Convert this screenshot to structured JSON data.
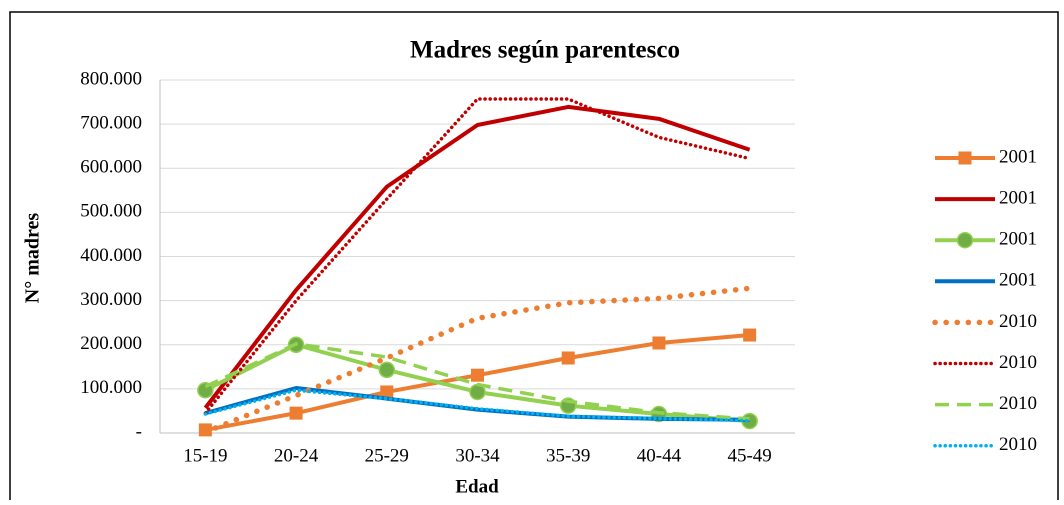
{
  "chart_data": {
    "type": "line",
    "title": "Madres según parentesco",
    "x_label": "Edad",
    "y_label": "N° madres",
    "categories": [
      "15-19",
      "20-24",
      "25-29",
      "30-34",
      "35-39",
      "40-44",
      "45-49"
    ],
    "ylim": [
      0,
      800000
    ],
    "yticks": [
      {
        "value": 0,
        "label": "-"
      },
      {
        "value": 100000,
        "label": "100.000"
      },
      {
        "value": 200000,
        "label": "200.000"
      },
      {
        "value": 300000,
        "label": "300.000"
      },
      {
        "value": 400000,
        "label": "400.000"
      },
      {
        "value": 500000,
        "label": "500.000"
      },
      {
        "value": 600000,
        "label": "600.000"
      },
      {
        "value": 700000,
        "label": "700.000"
      },
      {
        "value": 800000,
        "label": "800.000"
      }
    ],
    "grid": true,
    "legend": "right",
    "series": [
      {
        "name": "2001",
        "color": "#ed7d31",
        "style": "solid",
        "marker": "square",
        "values": [
          7000,
          45000,
          93000,
          131000,
          170000,
          204000,
          222000
        ]
      },
      {
        "name": "2001",
        "color": "#c00000",
        "style": "solid",
        "marker": "none",
        "values": [
          57000,
          324000,
          558000,
          698000,
          739000,
          712000,
          642000
        ]
      },
      {
        "name": "2001",
        "color": "#92d050",
        "style": "solid",
        "marker": "circle",
        "values": [
          97000,
          200000,
          143000,
          93000,
          62000,
          43000,
          27000
        ]
      },
      {
        "name": "2001",
        "color": "#0070c0",
        "style": "solid",
        "marker": "none",
        "values": [
          45000,
          102000,
          78000,
          53000,
          37000,
          32000,
          30000
        ]
      },
      {
        "name": "2010",
        "color": "#ed7d31",
        "style": "round-dot",
        "marker": "none",
        "values": [
          2000,
          85000,
          170000,
          260000,
          295000,
          305000,
          328000
        ]
      },
      {
        "name": "2010",
        "color": "#c00000",
        "style": "dotted",
        "marker": "none",
        "values": [
          45000,
          300000,
          530000,
          757000,
          757000,
          670000,
          622000
        ]
      },
      {
        "name": "2010",
        "color": "#92d050",
        "style": "dashed",
        "marker": "none",
        "values": [
          105000,
          202000,
          172000,
          110000,
          72000,
          46000,
          32000
        ]
      },
      {
        "name": "2010",
        "color": "#00b0f0",
        "style": "dotted",
        "marker": "none",
        "values": [
          43000,
          97000,
          78000,
          55000,
          38000,
          33000,
          28000
        ]
      }
    ]
  }
}
